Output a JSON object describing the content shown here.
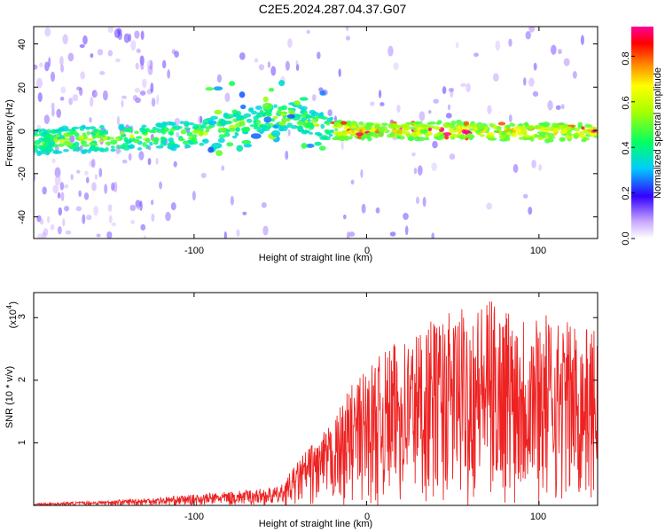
{
  "title": "C2E5.2024.287.04.37.G07",
  "chart_data": [
    {
      "type": "heatmap",
      "xlabel": "Height of straight line (km)",
      "ylabel": "Frequency (Hz)",
      "xlim": [
        -193,
        134
      ],
      "ylim": [
        -50,
        48
      ],
      "xticks": [
        "-100",
        "0",
        "100"
      ],
      "yticks": [
        "-40",
        "-20",
        "0",
        "20",
        "40"
      ],
      "colorbar": {
        "label": "Normalized spectral amplitude",
        "range": [
          0,
          0.93
        ],
        "ticks": [
          "0.0",
          "0.2",
          "0.4",
          "0.6",
          "0.8"
        ]
      },
      "ridge": [
        {
          "x": -190,
          "y": -5
        },
        {
          "x": -160,
          "y": -4
        },
        {
          "x": -130,
          "y": -3
        },
        {
          "x": -100,
          "y": -2
        },
        {
          "x": -80,
          "y": 2
        },
        {
          "x": -60,
          "y": 5
        },
        {
          "x": -45,
          "y": 7
        },
        {
          "x": -30,
          "y": 3
        },
        {
          "x": -20,
          "y": 0
        },
        {
          "x": 0,
          "y": 0
        },
        {
          "x": 50,
          "y": 0
        },
        {
          "x": 100,
          "y": -1
        },
        {
          "x": 134,
          "y": -1
        }
      ]
    },
    {
      "type": "line",
      "xlabel": "Height of straight line (km)",
      "ylabel": "SNR (10 * v/v)",
      "multiplier": "(x10",
      "multiplier_exp": "4",
      "multiplier_close": ")",
      "xlim": [
        -193,
        134
      ],
      "ylim": [
        0,
        3.4
      ],
      "xticks": [
        "-100",
        "0",
        "100"
      ],
      "yticks": [
        "1",
        "2",
        "3"
      ],
      "color": "#ee2222",
      "envelope": [
        {
          "x": -193,
          "y": 0.03
        },
        {
          "x": -150,
          "y": 0.08
        },
        {
          "x": -110,
          "y": 0.15
        },
        {
          "x": -80,
          "y": 0.22
        },
        {
          "x": -50,
          "y": 0.3
        },
        {
          "x": -35,
          "y": 0.9
        },
        {
          "x": -20,
          "y": 1.3
        },
        {
          "x": -10,
          "y": 1.9
        },
        {
          "x": 0,
          "y": 2.2
        },
        {
          "x": 20,
          "y": 2.7
        },
        {
          "x": 40,
          "y": 3.0
        },
        {
          "x": 70,
          "y": 3.3
        },
        {
          "x": 100,
          "y": 3.1
        },
        {
          "x": 134,
          "y": 2.8
        }
      ]
    }
  ]
}
